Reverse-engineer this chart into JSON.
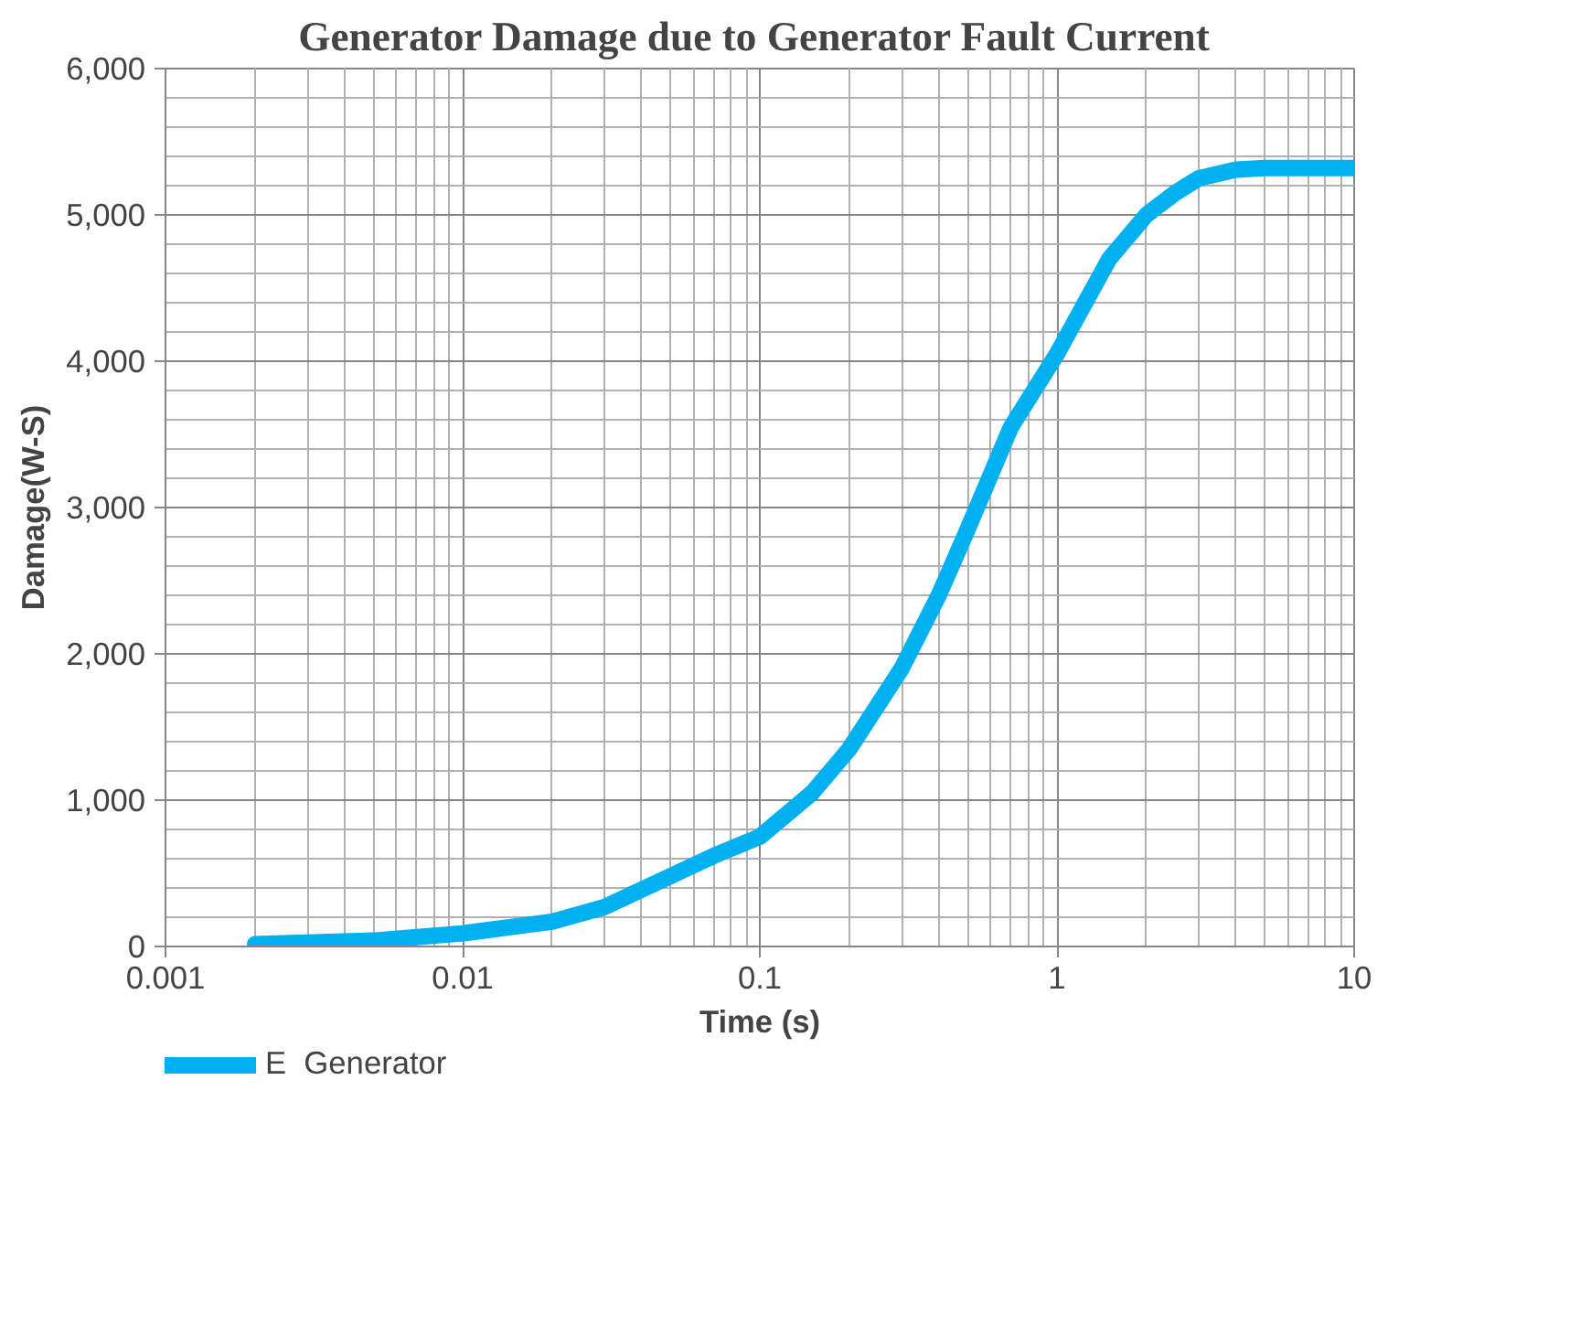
{
  "chart_data": {
    "type": "line",
    "title": "Generator Damage due to  Generator Fault Current",
    "xlabel": "Time (s)",
    "ylabel": "Damage(W-S)",
    "log": "x",
    "x": [
      0.002,
      0.005,
      0.01,
      0.02,
      0.03,
      0.05,
      0.07,
      0.1,
      0.15,
      0.2,
      0.3,
      0.4,
      0.5,
      0.7,
      1,
      1.5,
      2,
      2.5,
      3,
      4,
      5,
      7,
      10
    ],
    "series": [
      {
        "name": "E  Generator",
        "color": "#00b0f0",
        "values": [
          15,
          40,
          90,
          170,
          270,
          480,
          620,
          750,
          1050,
          1350,
          1900,
          2400,
          2850,
          3550,
          4050,
          4700,
          5000,
          5150,
          5250,
          5310,
          5320,
          5320,
          5320
        ]
      }
    ],
    "xlim": [
      0.001,
      10
    ],
    "ylim": [
      0,
      6000
    ],
    "xticks": [
      0.001,
      0.01,
      0.1,
      1,
      10
    ],
    "yticks": [
      {
        "value": 0,
        "label": "0"
      },
      {
        "value": 1000,
        "label": "1,000"
      },
      {
        "value": 2000,
        "label": "2,000"
      },
      {
        "value": 3000,
        "label": "3,000"
      },
      {
        "value": 4000,
        "label": "4,000"
      },
      {
        "value": 5000,
        "label": "5,000"
      },
      {
        "value": 6000,
        "label": "6,000"
      }
    ],
    "grid": true,
    "legend": "bottom left",
    "line_style": "solid"
  }
}
